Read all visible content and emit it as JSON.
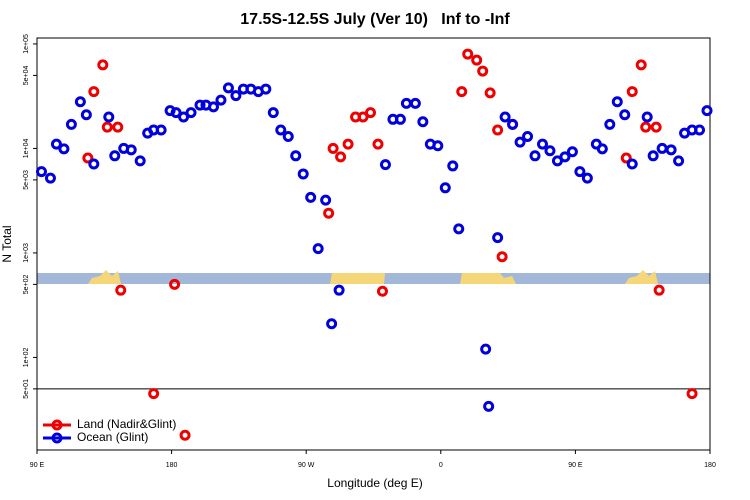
{
  "chart_data": {
    "type": "scatter",
    "title": "17.5S-12.5S July (Ver 10)   Inf to -Inf",
    "xlabel": "Longitude (deg E)",
    "ylabel": "N Total",
    "log_y": true,
    "legend": "bottom-left",
    "xlim": [
      90,
      540
    ],
    "xticks": [
      {
        "value": 90,
        "label": "90 E"
      },
      {
        "value": 180,
        "label": "180"
      },
      {
        "value": 270,
        "label": "90 W"
      },
      {
        "value": 360,
        "label": "0"
      },
      {
        "value": 450,
        "label": "90 E"
      },
      {
        "value": 540,
        "label": "180"
      }
    ],
    "ylim": [
      13,
      114000
    ],
    "yticks": [
      {
        "value": 50,
        "label": "5e+01"
      },
      {
        "value": 100,
        "label": "1e+02"
      },
      {
        "value": 500,
        "label": "5e+02"
      },
      {
        "value": 1000,
        "label": "1e+03"
      },
      {
        "value": 5000,
        "label": "5e+03"
      },
      {
        "value": 10000,
        "label": "1e+04"
      },
      {
        "value": 50000,
        "label": "5e+04"
      },
      {
        "value": 100000,
        "label": "1e+05"
      }
    ],
    "hline": 50,
    "series": [
      {
        "name": "Land (Nadir&Glint)",
        "color": "#ee0000",
        "x": [
          124,
          128,
          134,
          137,
          144,
          146,
          168,
          182,
          189,
          285,
          288,
          293,
          298,
          303,
          308,
          313,
          318,
          321,
          374,
          378,
          384,
          388,
          393,
          398,
          401,
          408,
          484,
          488,
          494,
          497,
          504,
          506,
          528
        ],
        "values": [
          8100,
          35000,
          63000,
          16000,
          16000,
          440,
          45,
          500,
          18,
          2400,
          10000,
          8300,
          11000,
          20000,
          20000,
          22000,
          11000,
          430,
          35000,
          80000,
          70000,
          55000,
          34000,
          15000,
          920,
          17000,
          8100,
          35000,
          63000,
          16000,
          16000,
          440,
          45
        ]
      },
      {
        "name": "Ocean (Glint)",
        "color": "#0000dd",
        "x": [
          93,
          99,
          103,
          108,
          113,
          119,
          123,
          128,
          138,
          142,
          148,
          153,
          159,
          164,
          168,
          173,
          179,
          183,
          188,
          193,
          199,
          203,
          208,
          213,
          218,
          223,
          228,
          233,
          238,
          243,
          248,
          253,
          258,
          263,
          268,
          273,
          278,
          283,
          287,
          292,
          323,
          328,
          333,
          337,
          343,
          348,
          353,
          358,
          363,
          368,
          372,
          390,
          392,
          398,
          403,
          408,
          413,
          418,
          423,
          428,
          433,
          438,
          443,
          448,
          453,
          458,
          464,
          468,
          473,
          478,
          483,
          488,
          498,
          502,
          508,
          514,
          519,
          523,
          528,
          533,
          538
        ],
        "values": [
          6000,
          5200,
          11000,
          9900,
          17000,
          28000,
          21000,
          7100,
          20000,
          8500,
          10000,
          9700,
          7600,
          14000,
          15000,
          15000,
          23000,
          22000,
          20000,
          22000,
          26000,
          26000,
          25000,
          29000,
          38000,
          32000,
          37000,
          37000,
          35000,
          37000,
          22000,
          15000,
          13000,
          8500,
          5700,
          3400,
          1100,
          3200,
          210,
          440,
          7000,
          19000,
          19000,
          27000,
          27000,
          18000,
          11000,
          10600,
          4200,
          6800,
          1700,
          120,
          34,
          1400,
          20000,
          17000,
          11500,
          13000,
          8500,
          11000,
          9500,
          7600,
          8300,
          9300,
          6000,
          5200,
          11000,
          9900,
          17000,
          28000,
          21000,
          7100,
          20000,
          8500,
          10000,
          9700,
          7600,
          14000,
          15000,
          15000,
          23000
        ]
      }
    ]
  }
}
